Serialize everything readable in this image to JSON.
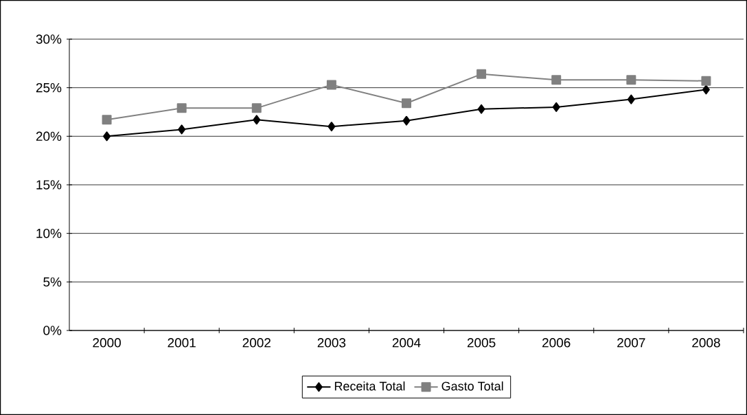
{
  "chart_data": {
    "type": "line",
    "categories": [
      "2000",
      "2001",
      "2002",
      "2003",
      "2004",
      "2005",
      "2006",
      "2007",
      "2008"
    ],
    "series": [
      {
        "name": "Receita Total",
        "color": "#000000",
        "marker": "diamond",
        "values": [
          20.0,
          20.7,
          21.7,
          21.0,
          21.6,
          22.8,
          23.0,
          23.8,
          24.8
        ]
      },
      {
        "name": "Gasto Total",
        "color": "#808080",
        "marker": "square",
        "values": [
          21.7,
          22.9,
          22.9,
          25.3,
          23.4,
          26.4,
          25.8,
          25.8,
          25.7
        ]
      }
    ],
    "ylim": [
      0,
      30
    ],
    "yticks": [
      {
        "value": 0,
        "label": "0%"
      },
      {
        "value": 5,
        "label": "5%"
      },
      {
        "value": 10,
        "label": "10%"
      },
      {
        "value": 15,
        "label": "15%"
      },
      {
        "value": 20,
        "label": "20%"
      },
      {
        "value": 25,
        "label": "25%"
      },
      {
        "value": 30,
        "label": "30%"
      }
    ],
    "grid": "y",
    "legend": "bottom",
    "line_style": "solid"
  }
}
